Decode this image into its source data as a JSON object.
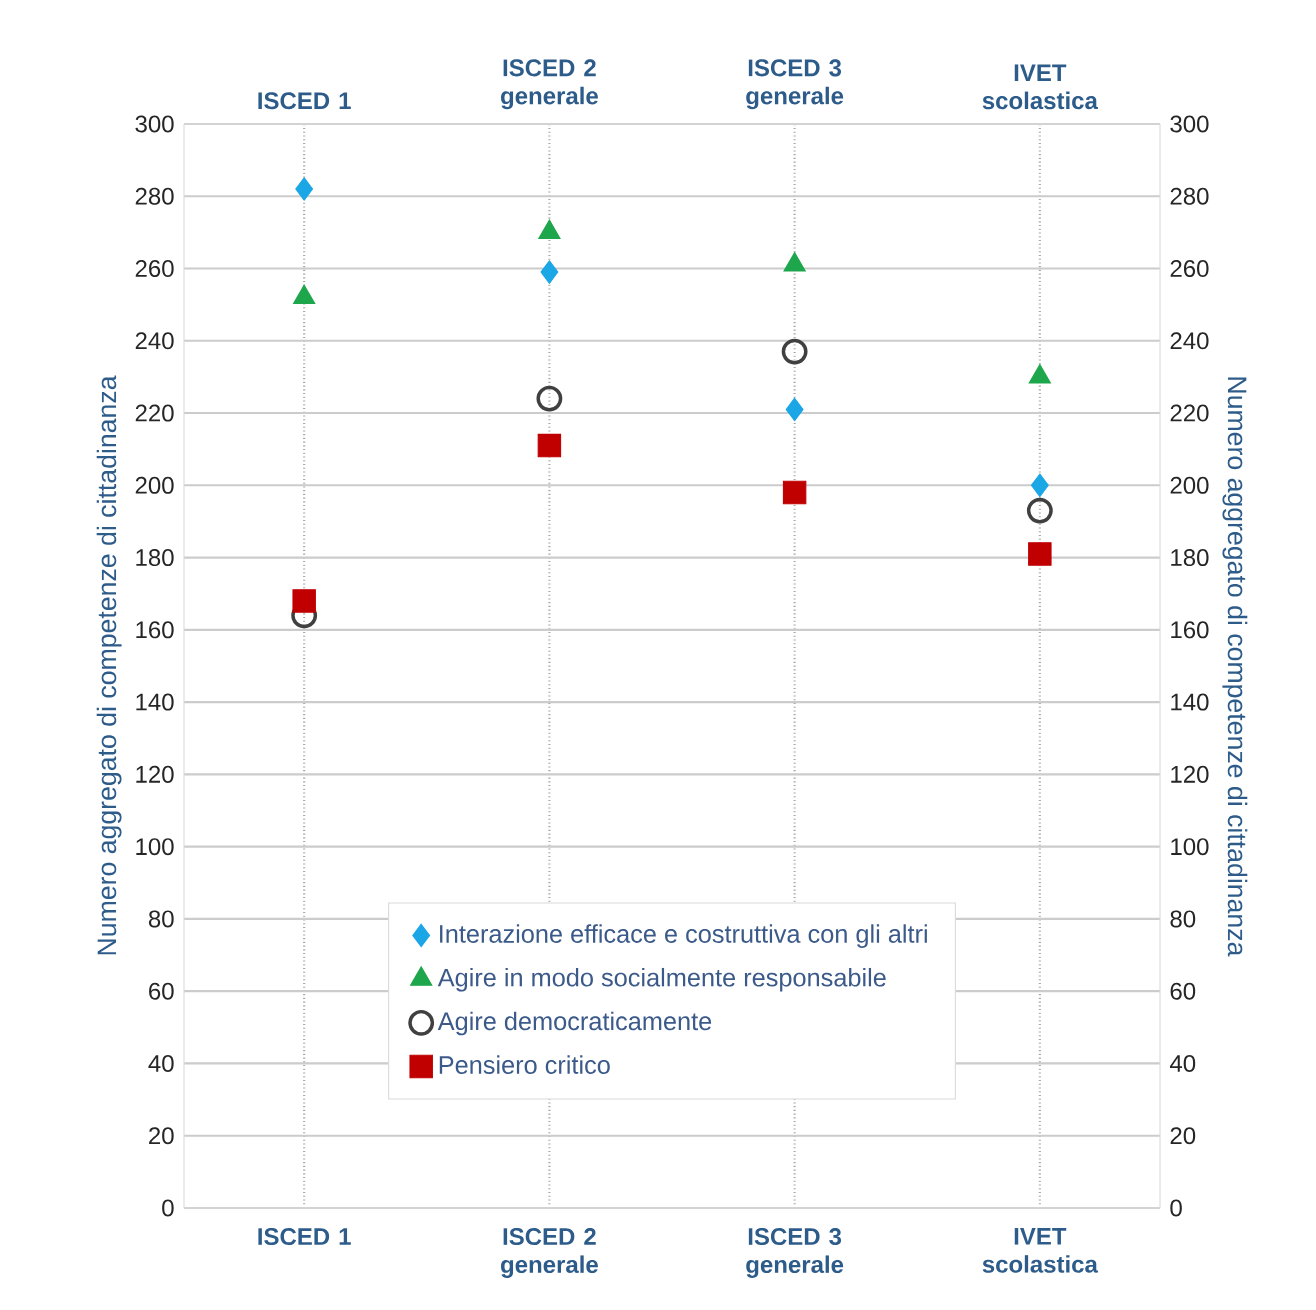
{
  "chart_data": {
    "type": "scatter",
    "categories": [
      "ISCED 1",
      "ISCED 2 generale",
      "ISCED 3 generale",
      "IVET scolastica"
    ],
    "ylabel": "Numero aggregato di competenze di cittadinanza",
    "y2label": "Numero aggregato di competenze di cittadinanza",
    "ylim": [
      0,
      300
    ],
    "yticks": [
      0,
      20,
      40,
      60,
      80,
      100,
      120,
      140,
      160,
      180,
      200,
      220,
      240,
      260,
      280,
      300
    ],
    "y2lim": [
      0,
      300
    ],
    "y2ticks": [
      0,
      20,
      40,
      60,
      80,
      100,
      120,
      140,
      160,
      180,
      200,
      220,
      240,
      260,
      280,
      300
    ],
    "grid": true,
    "legend": "bottom",
    "series": [
      {
        "name": "Interazione efficace e costruttiva con gli altri",
        "color": "#1ba6e6",
        "marker": "diamond",
        "values": [
          282,
          259,
          221,
          200
        ]
      },
      {
        "name": "Agire in modo socialmente responsabile",
        "color": "#1ea64c",
        "marker": "triangle",
        "values": [
          252,
          270,
          261,
          230
        ]
      },
      {
        "name": "Agire democraticamente",
        "color": "#404040",
        "marker": "circle",
        "values": [
          164,
          224,
          237,
          193
        ]
      },
      {
        "name": "Pensiero critico",
        "color": "#c00000",
        "marker": "square",
        "values": [
          168,
          211,
          198,
          181
        ]
      }
    ]
  }
}
